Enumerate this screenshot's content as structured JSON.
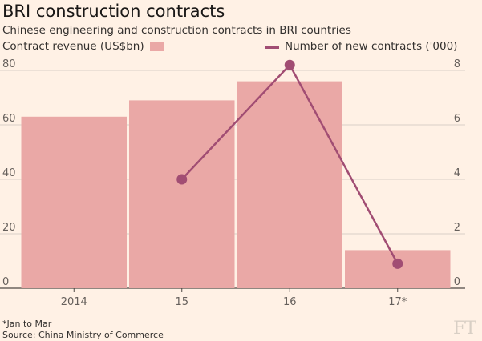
{
  "chart_data": {
    "type": "bar",
    "title": "BRI construction contracts",
    "subtitle": "Chinese engineering and construction contracts in BRI countries",
    "categories": [
      "2014",
      "15",
      "16",
      "17*"
    ],
    "series": [
      {
        "name": "Contract revenue (US$bn)",
        "axis": "left",
        "kind": "bar",
        "values": [
          63,
          69,
          76,
          14
        ]
      },
      {
        "name": "Number of new contracts ('000)",
        "axis": "right",
        "kind": "line",
        "values": [
          null,
          4.0,
          8.2,
          0.9
        ]
      }
    ],
    "y_left": {
      "ylim": [
        0,
        80
      ],
      "ticks": [
        "0",
        "20",
        "40",
        "60",
        "80"
      ]
    },
    "y_right": {
      "ylim": [
        0,
        8
      ],
      "ticks": [
        "0",
        "2",
        "4",
        "6",
        "8"
      ]
    },
    "grid": true,
    "legend": "top",
    "colors": {
      "bar": "#eaa8a6",
      "line": "#a14d73",
      "grid": "#d9cfc6",
      "background": "#fff1e5"
    },
    "footnote": "*Jan to Mar",
    "source": "Source: China Ministry of Commerce"
  },
  "logo_text": "FT"
}
